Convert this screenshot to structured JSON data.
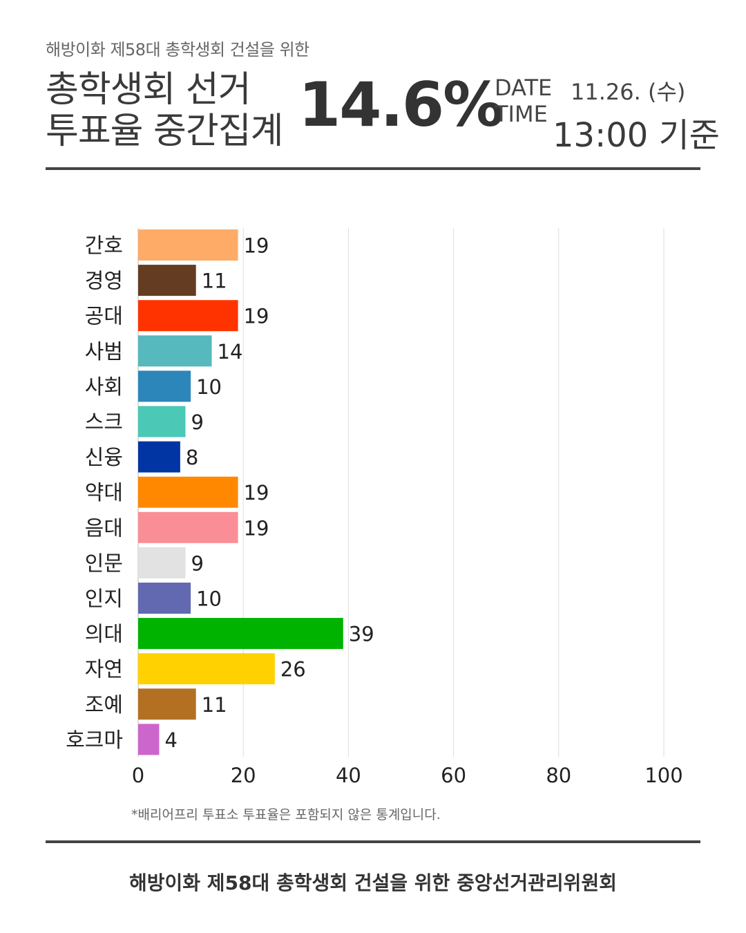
{
  "header": {
    "supertitle": "해방이화 제58대 총학생회 건설을 위한",
    "title_line1": "총학생회 선거",
    "title_line2": "투표율 중간집계",
    "turnout": "14.6%",
    "date_label": "DATE",
    "time_label": "TIME",
    "date_value": "11.26. (수)",
    "time_value": "13:00 기준"
  },
  "chart_data": {
    "type": "bar",
    "orientation": "horizontal",
    "categories": [
      "간호",
      "경영",
      "공대",
      "사범",
      "사회",
      "스크",
      "신융",
      "약대",
      "음대",
      "인문",
      "인지",
      "의대",
      "자연",
      "조예",
      "호크마"
    ],
    "values": [
      19,
      11,
      19,
      14,
      10,
      9,
      8,
      19,
      19,
      9,
      10,
      39,
      26,
      11,
      4
    ],
    "colors": [
      "#FDAB67",
      "#643C21",
      "#FF3300",
      "#55B9BE",
      "#2C86BA",
      "#4BC8B6",
      "#0035A3",
      "#FF8800",
      "#F98E97",
      "#E2E2E2",
      "#6269B0",
      "#00B300",
      "#FFD100",
      "#B37023",
      "#CC66CC"
    ],
    "xticks": [
      0,
      20,
      40,
      60,
      80,
      100
    ],
    "xlim": [
      0,
      100
    ],
    "grid": true,
    "data_labels": true
  },
  "note": "*배리어프리 투표소 투표율은 포함되지 않은 통계입니다.",
  "footer": "해방이화 제58대 총학생회 건설을 위한 중앙선거관리위원회"
}
